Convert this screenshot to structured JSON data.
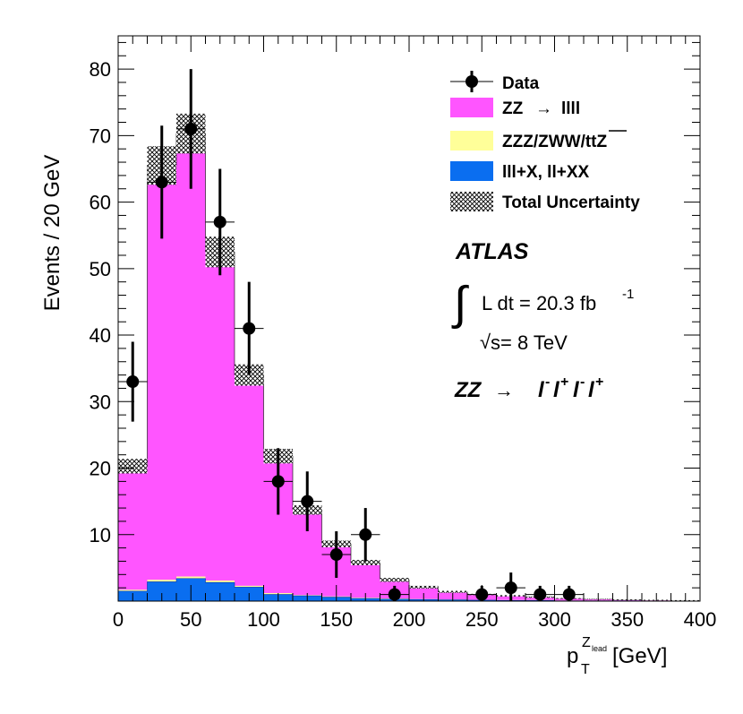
{
  "chart_data": {
    "type": "bar",
    "xlabel_main": "p",
    "xlabel_sub": "T",
    "xlabel_sup_main": "Z",
    "xlabel_sup_sub": "lead",
    "xlabel_unit": "[GeV]",
    "ylabel": "Events / 20 GeV",
    "xlim": [
      0,
      400
    ],
    "ylim": [
      0,
      85
    ],
    "bin_width": 20,
    "x_ticks": [
      0,
      50,
      100,
      150,
      200,
      250,
      300,
      350,
      400
    ],
    "y_ticks": [
      10,
      20,
      30,
      40,
      50,
      60,
      70,
      80
    ],
    "bin_edges": [
      0,
      20,
      40,
      60,
      80,
      100,
      120,
      140,
      160,
      180,
      200,
      220,
      240,
      260,
      280,
      300,
      320,
      340,
      360,
      380,
      400
    ],
    "stack": {
      "background": [
        1.5,
        2.9,
        3.4,
        2.8,
        2.1,
        1.0,
        0.8,
        0.6,
        0.4,
        0.3,
        0.25,
        0.2,
        0.15,
        0.1,
        0.1,
        0.05,
        0.05,
        0.05,
        0.03,
        0.03
      ],
      "rare": [
        0.2,
        0.3,
        0.3,
        0.3,
        0.2,
        0.2,
        0.1,
        0.1,
        0.1,
        0.1,
        0.05,
        0.05,
        0.05,
        0.05,
        0.05,
        0.03,
        0.03,
        0.02,
        0.02,
        0.02
      ],
      "total": [
        20.3,
        65.5,
        70.3,
        52.5,
        34.0,
        21.8,
        13.7,
        8.6,
        5.8,
        3.2,
        2.1,
        1.4,
        1.0,
        0.8,
        0.6,
        0.4,
        0.3,
        0.2,
        0.15,
        0.1
      ],
      "uncertainty": [
        1.1,
        2.9,
        3.0,
        2.3,
        1.6,
        1.1,
        0.7,
        0.5,
        0.4,
        0.3,
        0.2,
        0.15,
        0.1,
        0.1,
        0.1,
        0.05,
        0.05,
        0.05,
        0.05,
        0.05
      ]
    },
    "data_points": [
      {
        "x": 10,
        "y": 33,
        "err": 6
      },
      {
        "x": 30,
        "y": 63,
        "err": 8.5
      },
      {
        "x": 50,
        "y": 71,
        "err": 9
      },
      {
        "x": 70,
        "y": 57,
        "err": 8
      },
      {
        "x": 90,
        "y": 41,
        "err": 7
      },
      {
        "x": 110,
        "y": 18,
        "err": 5
      },
      {
        "x": 130,
        "y": 15,
        "err": 4.5
      },
      {
        "x": 150,
        "y": 7,
        "err": 3.5
      },
      {
        "x": 170,
        "y": 10,
        "err": 4
      },
      {
        "x": 190,
        "y": 1,
        "err": 1.3
      },
      {
        "x": 250,
        "y": 1,
        "err": 1.3
      },
      {
        "x": 270,
        "y": 2,
        "err": 2.3
      },
      {
        "x": 290,
        "y": 1,
        "err": 1.3
      },
      {
        "x": 310,
        "y": 1,
        "err": 1.3
      }
    ],
    "colors": {
      "signal": "#ff55ff",
      "rare": "#ffff99",
      "background": "#0a6ef0",
      "outline": "#000000"
    },
    "legend_position": "top-right",
    "legend": {
      "data": "Data",
      "signal_prefix": "ZZ",
      "signal_arrow": "→",
      "signal_suffix": "llll",
      "rare": "ZZZ/ZWW/ttZ",
      "background": "lll+X, ll+XX",
      "uncertainty": "Total Uncertainty"
    },
    "annotations": {
      "experiment": "ATLAS",
      "integral": "∫",
      "lumi_prefix": "L dt = 20.3 fb",
      "lumi_sup": "-1",
      "sqrt": "√",
      "energy_s": "s",
      "energy_rest": "= 8 TeV",
      "channel_prefix": "ZZ",
      "channel_arrow": "→",
      "channel_l": "l",
      "minus": "-",
      "plus": "+"
    }
  }
}
